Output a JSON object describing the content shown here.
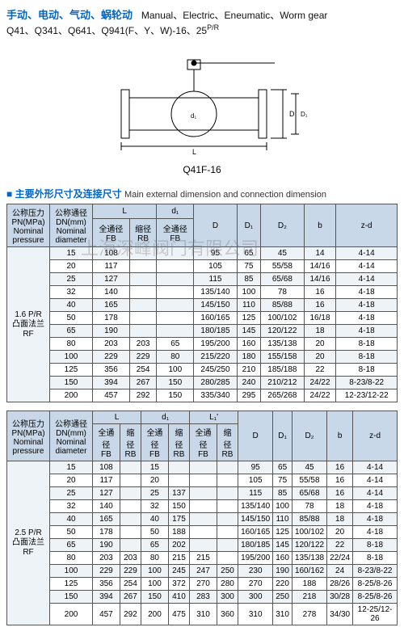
{
  "header": {
    "types_zh": "手动、电动、气动、蜗轮动",
    "types_en": "Manual、Electric、Eneumatic、Worm gear",
    "models": "Q41、Q341、Q641、Q941(F、Y、W)-16、25",
    "models_suffix": "P/R"
  },
  "diagram": {
    "caption": "Q41F-16"
  },
  "section_title": {
    "square": "■",
    "zh": "主要外形尺寸及连接尺寸",
    "en": "Main external dimension and connection dimension"
  },
  "watermark": "上海深峰阀门有限公司",
  "table1": {
    "headers": {
      "pn": "公称压力\nPN(MPa)\nNominal\npressure",
      "dn": "公称通径\nDN(mm)\nNominal\ndiameter",
      "L": "L",
      "d1": "d₁",
      "L_fb": "全通径\nFB",
      "L_rb": "缩径\nRB",
      "d1_fb": "全通径\nFB",
      "D": "D",
      "D1": "D₁",
      "D2": "D₂",
      "b": "b",
      "zd": "z-d"
    },
    "pressure": "1.6 P/R\n凸面法兰\nRF",
    "rows": [
      {
        "dn": "15",
        "Lfb": "108",
        "Lrb": "",
        "d1fb": "",
        "D": "95",
        "D1": "65",
        "D2": "45",
        "b": "14",
        "zd": "4-14"
      },
      {
        "dn": "20",
        "Lfb": "117",
        "Lrb": "",
        "d1fb": "",
        "D": "105",
        "D1": "75",
        "D2": "55/58",
        "b": "14/16",
        "zd": "4-14"
      },
      {
        "dn": "25",
        "Lfb": "127",
        "Lrb": "",
        "d1fb": "",
        "D": "115",
        "D1": "85",
        "D2": "65/68",
        "b": "14/16",
        "zd": "4-14"
      },
      {
        "dn": "32",
        "Lfb": "140",
        "Lrb": "",
        "d1fb": "",
        "D": "135/140",
        "D1": "100",
        "D2": "78",
        "b": "16",
        "zd": "4-18"
      },
      {
        "dn": "40",
        "Lfb": "165",
        "Lrb": "",
        "d1fb": "",
        "D": "145/150",
        "D1": "110",
        "D2": "85/88",
        "b": "16",
        "zd": "4-18"
      },
      {
        "dn": "50",
        "Lfb": "178",
        "Lrb": "",
        "d1fb": "",
        "D": "160/165",
        "D1": "125",
        "D2": "100/102",
        "b": "16/18",
        "zd": "4-18"
      },
      {
        "dn": "65",
        "Lfb": "190",
        "Lrb": "",
        "d1fb": "",
        "D": "180/185",
        "D1": "145",
        "D2": "120/122",
        "b": "18",
        "zd": "4-18"
      },
      {
        "dn": "80",
        "Lfb": "203",
        "Lrb": "203",
        "d1fb": "65",
        "D": "195/200",
        "D1": "160",
        "D2": "135/138",
        "b": "20",
        "zd": "8-18"
      },
      {
        "dn": "100",
        "Lfb": "229",
        "Lrb": "229",
        "d1fb": "80",
        "D": "215/220",
        "D1": "180",
        "D2": "155/158",
        "b": "20",
        "zd": "8-18"
      },
      {
        "dn": "125",
        "Lfb": "356",
        "Lrb": "254",
        "d1fb": "100",
        "D": "245/250",
        "D1": "210",
        "D2": "185/188",
        "b": "22",
        "zd": "8-18"
      },
      {
        "dn": "150",
        "Lfb": "394",
        "Lrb": "267",
        "d1fb": "150",
        "D": "280/285",
        "D1": "240",
        "D2": "210/212",
        "b": "24/22",
        "zd": "8-23/8-22"
      },
      {
        "dn": "200",
        "Lfb": "457",
        "Lrb": "292",
        "d1fb": "150",
        "D": "335/340",
        "D1": "295",
        "D2": "265/268",
        "b": "24/22",
        "zd": "12-23/12-22"
      }
    ]
  },
  "table2": {
    "headers": {
      "pn": "公称压力\nPN(MPa)\nNominal\npressure",
      "dn": "公称通径\nDN(mm)\nNominal\ndiameter",
      "L": "L",
      "d1": "d₁",
      "L1": "L₁'",
      "fb": "全通径\nFB",
      "rb": "缩径\nRB",
      "D": "D",
      "D1": "D₁",
      "D2": "D₂",
      "b": "b",
      "zd": "z-d"
    },
    "pressure": "2.5 P/R\n凸面法兰\nRF",
    "rows": [
      {
        "dn": "15",
        "Lfb": "108",
        "Lrb": "",
        "d1fb": "15",
        "d1rb": "",
        "L1fb": "",
        "L1rb": "",
        "D": "95",
        "D1": "65",
        "D2": "45",
        "b": "16",
        "zd": "4-14"
      },
      {
        "dn": "20",
        "Lfb": "117",
        "Lrb": "",
        "d1fb": "20",
        "d1rb": "",
        "L1fb": "",
        "L1rb": "",
        "D": "105",
        "D1": "75",
        "D2": "55/58",
        "b": "16",
        "zd": "4-14"
      },
      {
        "dn": "25",
        "Lfb": "127",
        "Lrb": "",
        "d1fb": "25",
        "d1rb": "137",
        "L1fb": "",
        "L1rb": "",
        "D": "115",
        "D1": "85",
        "D2": "65/68",
        "b": "16",
        "zd": "4-14"
      },
      {
        "dn": "32",
        "Lfb": "140",
        "Lrb": "",
        "d1fb": "32",
        "d1rb": "150",
        "L1fb": "",
        "L1rb": "",
        "D": "135/140",
        "D1": "100",
        "D2": "78",
        "b": "18",
        "zd": "4-18"
      },
      {
        "dn": "40",
        "Lfb": "165",
        "Lrb": "",
        "d1fb": "40",
        "d1rb": "175",
        "L1fb": "",
        "L1rb": "",
        "D": "145/150",
        "D1": "110",
        "D2": "85/88",
        "b": "18",
        "zd": "4-18"
      },
      {
        "dn": "50",
        "Lfb": "178",
        "Lrb": "",
        "d1fb": "50",
        "d1rb": "188",
        "L1fb": "",
        "L1rb": "",
        "D": "160/165",
        "D1": "125",
        "D2": "100/102",
        "b": "20",
        "zd": "4-18"
      },
      {
        "dn": "65",
        "Lfb": "190",
        "Lrb": "",
        "d1fb": "65",
        "d1rb": "202",
        "L1fb": "",
        "L1rb": "",
        "D": "180/185",
        "D1": "145",
        "D2": "120/122",
        "b": "22",
        "zd": "8-18"
      },
      {
        "dn": "80",
        "Lfb": "203",
        "Lrb": "203",
        "d1fb": "80",
        "d1rb": "215",
        "L1fb": "215",
        "L1rb": "",
        "D": "195/200",
        "D1": "160",
        "D2": "135/138",
        "b": "22/24",
        "zd": "8-18"
      },
      {
        "dn": "100",
        "Lfb": "229",
        "Lrb": "229",
        "d1fb": "100",
        "d1rb": "245",
        "L1fb": "247",
        "L1rb": "250",
        "D": "230",
        "D1": "190",
        "D2": "160/162",
        "b": "24",
        "zd": "8-23/8-22"
      },
      {
        "dn": "125",
        "Lfb": "356",
        "Lrb": "254",
        "d1fb": "100",
        "d1rb": "372",
        "L1fb": "270",
        "L1rb": "280",
        "D": "270",
        "D1": "220",
        "D2": "188",
        "b": "28/26",
        "zd": "8-25/8-26"
      },
      {
        "dn": "150",
        "Lfb": "394",
        "Lrb": "267",
        "d1fb": "150",
        "d1rb": "410",
        "L1fb": "283",
        "L1rb": "300",
        "D": "300",
        "D1": "250",
        "D2": "218",
        "b": "30/28",
        "zd": "8-25/8-26"
      },
      {
        "dn": "200",
        "Lfb": "457",
        "Lrb": "292",
        "d1fb": "200",
        "d1rb": "475",
        "L1fb": "310",
        "L1rb": "360",
        "D": "310",
        "D1": "310",
        "D2": "278",
        "b": "34/30",
        "zd": "12-25/12-26"
      }
    ]
  },
  "colors": {
    "header_bg": "#c8d8e8",
    "alt_bg": "#eef3f8",
    "border": "#555555",
    "title_blue": "#0066cc"
  }
}
